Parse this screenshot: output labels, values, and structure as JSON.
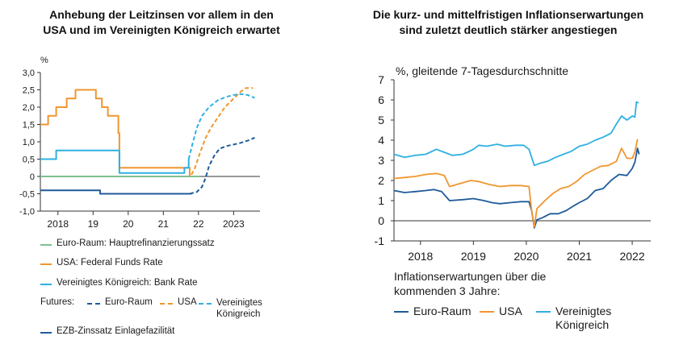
{
  "left_chart": {
    "title_line1": "Anhebung der Leitzinsen vor allem in den",
    "title_line2": "USA und im Vereinigten Königreich erwartet",
    "unit": "%",
    "legend": {
      "euro": "Euro-Raum: Hauptrefinanzierungssatz",
      "usa": "USA: Federal Funds Rate",
      "uk": "Vereinigtes Königreich: Bank Rate",
      "futures_label": "Futures:",
      "fut_euro": "Euro-Raum",
      "fut_usa": "USA",
      "fut_uk_line1": "Vereinigtes",
      "fut_uk_line2": "Königreich",
      "ezb": "EZB-Zinssatz Einlagefazilität"
    }
  },
  "right_chart": {
    "title_line1": "Die kurz- und mittelfristigen Inflationserwartungen",
    "title_line2": "sind zuletzt deutlich stärker angestiegen",
    "unit": "%, gleitende 7-Tagesdurchschnitte",
    "legend": {
      "heading_line1": "Inflationserwartungen über die",
      "heading_line2": "kommenden 3 Jahre:",
      "euro": "Euro-Raum",
      "usa": "USA",
      "uk_line1": "Vereinigtes",
      "uk_line2": "Königreich"
    }
  },
  "colors": {
    "euro_green": "#7fbf8f",
    "usa_orange": "#f0962e",
    "uk_lightblue": "#2fb0e3",
    "ezb_darkblue": "#1f5b99",
    "right_euro": "#1f5b99",
    "right_usa": "#f0962e",
    "right_uk": "#2fb0e3"
  },
  "chart_data": [
    {
      "type": "line",
      "title": "Anhebung der Leitzinsen vor allem in den USA und im Vereinigten Königreich erwartet",
      "ylabel": "%",
      "ylim": [
        -1.0,
        3.0
      ],
      "yticks": [
        "3,0",
        "2,5",
        "2,0",
        "1,5",
        "1,0",
        "0,5",
        "0",
        "-0,5",
        "-1,0"
      ],
      "xlim": [
        2017.5,
        2023.75
      ],
      "xticks": [
        {
          "x": 2018.0,
          "label": "2018"
        },
        {
          "x": 2019.0,
          "label": "19"
        },
        {
          "x": 2020.0,
          "label": "20"
        },
        {
          "x": 2021.0,
          "label": "21"
        },
        {
          "x": 2022.0,
          "label": "22"
        },
        {
          "x": 2023.0,
          "label": "2023"
        }
      ],
      "series": [
        {
          "name": "Euro-Raum: Hauptrefinanzierungssatz",
          "color": "#7fbf8f",
          "dash": false,
          "points": [
            [
              2017.5,
              0.0
            ],
            [
              2022.05,
              0.0
            ]
          ]
        },
        {
          "name": "USA: Federal Funds Rate",
          "color": "#f0962e",
          "dash": false,
          "step": true,
          "points": [
            [
              2017.5,
              1.5
            ],
            [
              2017.72,
              1.75
            ],
            [
              2017.95,
              2.0
            ],
            [
              2018.25,
              2.25
            ],
            [
              2018.5,
              2.5
            ],
            [
              2019.08,
              2.25
            ],
            [
              2019.25,
              2.0
            ],
            [
              2019.42,
              1.75
            ],
            [
              2019.72,
              1.25
            ],
            [
              2019.75,
              0.25
            ],
            [
              2021.65,
              0.25
            ],
            [
              2021.75,
              0.0
            ]
          ]
        },
        {
          "name": "Vereinigtes Königreich: Bank Rate",
          "color": "#2fb0e3",
          "dash": false,
          "step": true,
          "points": [
            [
              2017.5,
              0.5
            ],
            [
              2017.95,
              0.75
            ],
            [
              2019.75,
              0.1
            ],
            [
              2021.5,
              0.1
            ],
            [
              2021.6,
              0.25
            ],
            [
              2021.72,
              0.5
            ]
          ]
        },
        {
          "name": "Futures: Euro-Raum",
          "color": "#1f5b99",
          "dash": true,
          "points": [
            [
              2021.75,
              -0.5
            ],
            [
              2021.95,
              -0.45
            ],
            [
              2022.1,
              -0.3
            ],
            [
              2022.2,
              -0.05
            ],
            [
              2022.3,
              0.3
            ],
            [
              2022.45,
              0.6
            ],
            [
              2022.6,
              0.8
            ],
            [
              2022.8,
              0.88
            ],
            [
              2023.0,
              0.92
            ],
            [
              2023.2,
              0.97
            ],
            [
              2023.45,
              1.05
            ],
            [
              2023.6,
              1.12
            ]
          ]
        },
        {
          "name": "Futures: USA",
          "color": "#f0962e",
          "dash": true,
          "points": [
            [
              2021.8,
              0.05
            ],
            [
              2021.9,
              0.25
            ],
            [
              2022.05,
              0.7
            ],
            [
              2022.2,
              1.1
            ],
            [
              2022.35,
              1.4
            ],
            [
              2022.55,
              1.7
            ],
            [
              2022.75,
              2.0
            ],
            [
              2023.0,
              2.25
            ],
            [
              2023.2,
              2.45
            ],
            [
              2023.35,
              2.55
            ],
            [
              2023.55,
              2.55
            ]
          ]
        },
        {
          "name": "Futures: Vereinigtes Königreich",
          "color": "#2fb0e3",
          "dash": true,
          "points": [
            [
              2021.72,
              0.5
            ],
            [
              2021.82,
              0.9
            ],
            [
              2021.95,
              1.4
            ],
            [
              2022.1,
              1.75
            ],
            [
              2022.3,
              2.0
            ],
            [
              2022.55,
              2.2
            ],
            [
              2022.8,
              2.3
            ],
            [
              2023.0,
              2.35
            ],
            [
              2023.2,
              2.38
            ],
            [
              2023.4,
              2.35
            ],
            [
              2023.6,
              2.27
            ]
          ]
        },
        {
          "name": "EZB-Zinssatz Einlagefazilität",
          "color": "#1f5b99",
          "dash": false,
          "step": true,
          "points": [
            [
              2017.5,
              -0.4
            ],
            [
              2019.2,
              -0.5
            ],
            [
              2021.8,
              -0.5
            ]
          ]
        }
      ]
    },
    {
      "type": "line",
      "title": "Die kurz- und mittelfristigen Inflationserwartungen sind zuletzt deutlich stärker angestiegen",
      "ylabel": "%, gleitende 7-Tagesdurchschnitte",
      "ylim": [
        -1,
        7
      ],
      "yticks": [
        "7",
        "6",
        "5",
        "4",
        "3",
        "2",
        "1",
        "0",
        "-1"
      ],
      "xlim": [
        2017.5,
        2022.35
      ],
      "xticks": [
        {
          "x": 2018.0,
          "label": "2018"
        },
        {
          "x": 2019.0,
          "label": "2019"
        },
        {
          "x": 2020.0,
          "label": "2020"
        },
        {
          "x": 2021.0,
          "label": "2021"
        },
        {
          "x": 2022.0,
          "label": "2022"
        }
      ],
      "series": [
        {
          "name": "Euro-Raum",
          "color": "#1f5b99",
          "points": [
            [
              2017.5,
              1.5
            ],
            [
              2017.7,
              1.4
            ],
            [
              2017.9,
              1.45
            ],
            [
              2018.1,
              1.5
            ],
            [
              2018.25,
              1.55
            ],
            [
              2018.4,
              1.45
            ],
            [
              2018.55,
              1.0
            ],
            [
              2018.8,
              1.05
            ],
            [
              2019.0,
              1.1
            ],
            [
              2019.2,
              1.0
            ],
            [
              2019.35,
              0.9
            ],
            [
              2019.5,
              0.85
            ],
            [
              2019.7,
              0.9
            ],
            [
              2019.9,
              0.95
            ],
            [
              2020.05,
              0.95
            ],
            [
              2020.1,
              0.5
            ],
            [
              2020.15,
              -0.35
            ],
            [
              2020.2,
              0.05
            ],
            [
              2020.3,
              0.15
            ],
            [
              2020.45,
              0.35
            ],
            [
              2020.6,
              0.35
            ],
            [
              2020.75,
              0.5
            ],
            [
              2020.9,
              0.75
            ],
            [
              2021.0,
              0.9
            ],
            [
              2021.15,
              1.1
            ],
            [
              2021.3,
              1.5
            ],
            [
              2021.45,
              1.6
            ],
            [
              2021.6,
              2.0
            ],
            [
              2021.75,
              2.3
            ],
            [
              2021.9,
              2.25
            ],
            [
              2022.0,
              2.6
            ],
            [
              2022.05,
              2.9
            ],
            [
              2022.1,
              3.6
            ],
            [
              2022.13,
              3.3
            ]
          ]
        },
        {
          "name": "USA",
          "color": "#f0962e",
          "points": [
            [
              2017.5,
              2.1
            ],
            [
              2017.7,
              2.15
            ],
            [
              2017.9,
              2.2
            ],
            [
              2018.1,
              2.3
            ],
            [
              2018.3,
              2.35
            ],
            [
              2018.45,
              2.25
            ],
            [
              2018.55,
              1.7
            ],
            [
              2018.75,
              1.85
            ],
            [
              2018.95,
              2.0
            ],
            [
              2019.1,
              1.95
            ],
            [
              2019.3,
              1.8
            ],
            [
              2019.5,
              1.7
            ],
            [
              2019.7,
              1.75
            ],
            [
              2019.9,
              1.75
            ],
            [
              2020.05,
              1.7
            ],
            [
              2020.1,
              0.5
            ],
            [
              2020.15,
              -0.3
            ],
            [
              2020.2,
              0.6
            ],
            [
              2020.35,
              1.0
            ],
            [
              2020.5,
              1.35
            ],
            [
              2020.65,
              1.6
            ],
            [
              2020.8,
              1.7
            ],
            [
              2020.95,
              1.95
            ],
            [
              2021.1,
              2.3
            ],
            [
              2021.25,
              2.5
            ],
            [
              2021.4,
              2.7
            ],
            [
              2021.55,
              2.75
            ],
            [
              2021.7,
              2.95
            ],
            [
              2021.8,
              3.6
            ],
            [
              2021.9,
              3.1
            ],
            [
              2022.0,
              3.1
            ],
            [
              2022.05,
              3.4
            ],
            [
              2022.1,
              4.05
            ]
          ]
        },
        {
          "name": "Vereinigtes Königreich",
          "color": "#2fb0e3",
          "points": [
            [
              2017.5,
              3.3
            ],
            [
              2017.7,
              3.15
            ],
            [
              2017.9,
              3.25
            ],
            [
              2018.1,
              3.3
            ],
            [
              2018.3,
              3.55
            ],
            [
              2018.45,
              3.4
            ],
            [
              2018.6,
              3.25
            ],
            [
              2018.8,
              3.3
            ],
            [
              2019.0,
              3.55
            ],
            [
              2019.1,
              3.75
            ],
            [
              2019.25,
              3.7
            ],
            [
              2019.45,
              3.8
            ],
            [
              2019.6,
              3.7
            ],
            [
              2019.8,
              3.75
            ],
            [
              2019.95,
              3.75
            ],
            [
              2020.05,
              3.55
            ],
            [
              2020.15,
              2.75
            ],
            [
              2020.25,
              2.85
            ],
            [
              2020.4,
              2.95
            ],
            [
              2020.55,
              3.15
            ],
            [
              2020.7,
              3.3
            ],
            [
              2020.85,
              3.45
            ],
            [
              2021.0,
              3.7
            ],
            [
              2021.15,
              3.8
            ],
            [
              2021.3,
              4.0
            ],
            [
              2021.45,
              4.15
            ],
            [
              2021.6,
              4.35
            ],
            [
              2021.7,
              4.8
            ],
            [
              2021.8,
              5.2
            ],
            [
              2021.9,
              5.0
            ],
            [
              2022.0,
              5.2
            ],
            [
              2022.05,
              5.15
            ],
            [
              2022.08,
              5.9
            ],
            [
              2022.12,
              5.85
            ]
          ]
        }
      ]
    }
  ]
}
